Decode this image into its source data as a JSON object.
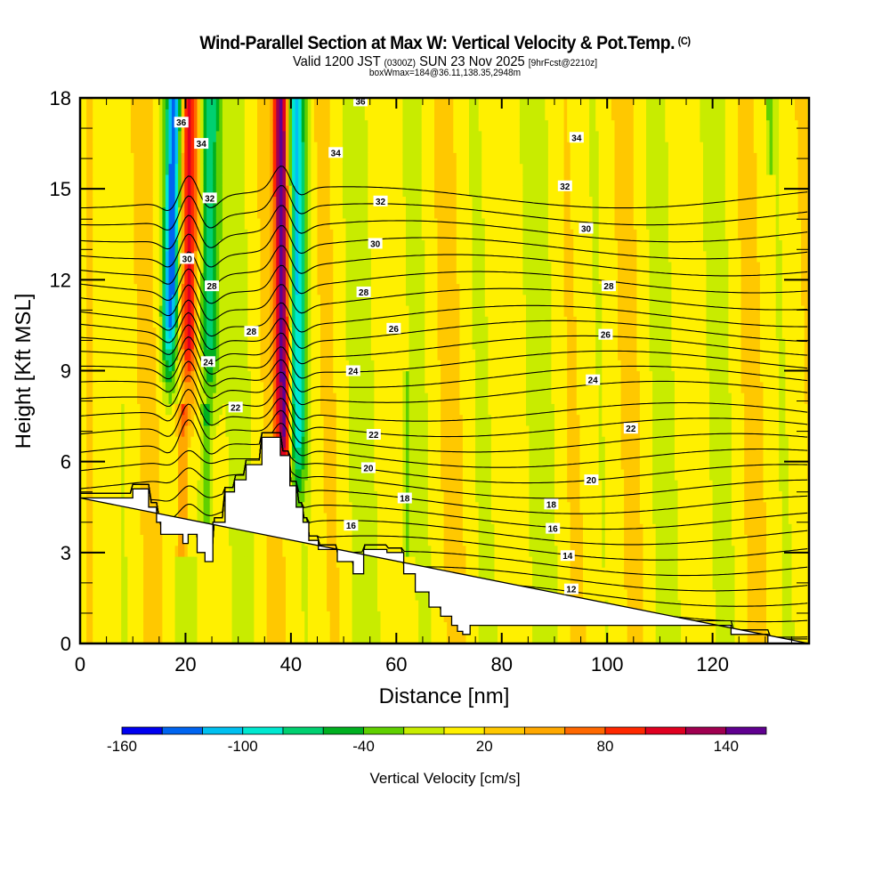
{
  "header": {
    "title": "Wind-Parallel Section at Max W: Vertical Velocity & Pot.Temp.",
    "copyright": "(C)",
    "valid_prefix": "Valid 1200 JST",
    "valid_utc": "(0300Z)",
    "valid_date": "SUN 23 Nov 2025",
    "forecast": "[9hrFcst@2210z]",
    "box_wmax": "boxWmax=184@36.11,138.35,2948m"
  },
  "chart_data": {
    "type": "heatmap",
    "title": "Wind-Parallel Section at Max W: Vertical Velocity & Pot.Temp.",
    "xlabel": "Distance [nm]",
    "ylabel": "Height [Kft MSL]",
    "xlim": [
      0,
      138.3
    ],
    "ylim": [
      0,
      18
    ],
    "x_ticks": [
      0,
      20,
      40,
      60,
      80,
      100,
      120
    ],
    "x_tick_labels": [
      "0",
      "20",
      "40",
      "60",
      "80",
      "100",
      "120"
    ],
    "x_minor_step": 5,
    "y_ticks": [
      0,
      3,
      6,
      9,
      12,
      15,
      18
    ],
    "y_tick_labels": [
      "0",
      "3",
      "6",
      "9",
      "12",
      "15",
      "18"
    ],
    "y_minor_step": 1,
    "colorbar": {
      "title": "Vertical Velocity [cm/s]",
      "placement": "bottom",
      "boundaries": [
        -160,
        -140,
        -120,
        -100,
        -80,
        -60,
        -40,
        -20,
        0,
        20,
        40,
        60,
        80,
        100,
        120,
        140,
        160
      ],
      "tick_values": [
        -160,
        -100,
        -40,
        20,
        80,
        140
      ],
      "tick_labels": [
        "-160",
        "-100",
        "-40",
        "20",
        "80",
        "140"
      ],
      "colors": [
        "#0000f0",
        "#0064f0",
        "#00c0f0",
        "#00e8d0",
        "#00d070",
        "#00b020",
        "#60d000",
        "#c8ec00",
        "#fff000",
        "#ffc800",
        "#ffa800",
        "#ff6800",
        "#ff2800",
        "#e00020",
        "#a00050",
        "#600090"
      ]
    },
    "vertical_velocity_features": [
      {
        "name": "downdraft-core-1",
        "x_center": 17.5,
        "value": -140,
        "y_range": [
          11,
          18
        ]
      },
      {
        "name": "updraft-core-1",
        "x_center": 20.5,
        "value": 110,
        "y_range": [
          10,
          18
        ]
      },
      {
        "name": "downdraft-core-2",
        "x_center": 24.5,
        "value": -90,
        "y_range": [
          10,
          18
        ]
      },
      {
        "name": "updraft-core-2",
        "x_center": 38.5,
        "value": 150,
        "y_range": [
          7,
          18
        ]
      },
      {
        "name": "downdraft-core-3",
        "x_center": 41,
        "value": -110,
        "y_range": [
          7,
          18
        ]
      }
    ],
    "terrain_profile": {
      "x": [
        0,
        10,
        10,
        13,
        13,
        14.5,
        14.5,
        15.3,
        15.3,
        19.5,
        19.5,
        20.5,
        20.5,
        22.2,
        22.2,
        23.7,
        23.7,
        25.2,
        25.2,
        27.5,
        27.5,
        29.3,
        29.3,
        31.5,
        31.5,
        34.5,
        34.5,
        38,
        38,
        39.8,
        39.8,
        41,
        41,
        42.3,
        42.3,
        43.4,
        43.4,
        45.2,
        45.2,
        48.8,
        48.8,
        51.8,
        51.8,
        53.8,
        53.8,
        57.4,
        57.4,
        58.2,
        58.2,
        61.4,
        61.4,
        63.6,
        63.6,
        66.2,
        66.2,
        68.4,
        68.4,
        70.5,
        70.5,
        71.6,
        71.6,
        72.6,
        72.6,
        74,
        74,
        123.5,
        123.5,
        130.5,
        130.5,
        138.3,
        138.3,
        0
      ],
      "y": [
        4.8,
        4.8,
        5.1,
        5.1,
        4.5,
        4.5,
        4.0,
        4.0,
        3.6,
        3.6,
        3.3,
        3.3,
        3.6,
        3.6,
        3.0,
        3.0,
        2.7,
        2.7,
        4.0,
        4.0,
        5.0,
        5.0,
        5.4,
        5.4,
        5.9,
        5.9,
        6.8,
        6.8,
        6.2,
        6.2,
        5.2,
        5.2,
        4.5,
        4.5,
        4.0,
        4.0,
        3.4,
        3.4,
        3.1,
        3.1,
        2.7,
        2.7,
        2.3,
        2.3,
        3.1,
        3.1,
        3.1,
        3.1,
        3.0,
        3.0,
        2.3,
        2.3,
        1.7,
        1.7,
        1.2,
        1.2,
        0.9,
        0.9,
        0.6,
        0.6,
        0.4,
        0.4,
        0.3,
        0.3,
        0.6,
        0.6,
        0.3,
        0.3,
        0,
        0,
        0
      ]
    },
    "potential_temperature_contours": {
      "levels": [
        12,
        14,
        16,
        18,
        20,
        22,
        24,
        26,
        28,
        30,
        32,
        34,
        36
      ],
      "labels": [
        {
          "text": "36",
          "x": 19.2,
          "y": 17.2
        },
        {
          "text": "36",
          "x": 53.2,
          "y": 17.9
        },
        {
          "text": "34",
          "x": 23,
          "y": 16.5
        },
        {
          "text": "34",
          "x": 48.5,
          "y": 16.2
        },
        {
          "text": "34",
          "x": 94.2,
          "y": 16.7
        },
        {
          "text": "32",
          "x": 24.6,
          "y": 14.7
        },
        {
          "text": "32",
          "x": 57,
          "y": 14.6
        },
        {
          "text": "32",
          "x": 92,
          "y": 15.1
        },
        {
          "text": "30",
          "x": 20.3,
          "y": 12.7
        },
        {
          "text": "30",
          "x": 56,
          "y": 13.2
        },
        {
          "text": "30",
          "x": 96,
          "y": 13.7
        },
        {
          "text": "28",
          "x": 25,
          "y": 11.8
        },
        {
          "text": "28",
          "x": 53.8,
          "y": 11.6
        },
        {
          "text": "28",
          "x": 100.3,
          "y": 11.8
        },
        {
          "text": "28",
          "x": 32.5,
          "y": 10.3
        },
        {
          "text": "26",
          "x": 59.5,
          "y": 10.4
        },
        {
          "text": "26",
          "x": 99.7,
          "y": 10.2
        },
        {
          "text": "24",
          "x": 24.3,
          "y": 9.3
        },
        {
          "text": "24",
          "x": 51.8,
          "y": 9.0
        },
        {
          "text": "24",
          "x": 97.3,
          "y": 8.7
        },
        {
          "text": "22",
          "x": 29.5,
          "y": 7.8
        },
        {
          "text": "22",
          "x": 55.7,
          "y": 6.9
        },
        {
          "text": "22",
          "x": 104.5,
          "y": 7.1
        },
        {
          "text": "20",
          "x": 54.7,
          "y": 5.8
        },
        {
          "text": "20",
          "x": 97,
          "y": 5.4
        },
        {
          "text": "18",
          "x": 61.6,
          "y": 4.8
        },
        {
          "text": "18",
          "x": 89.4,
          "y": 4.6
        },
        {
          "text": "16",
          "x": 51.4,
          "y": 3.9
        },
        {
          "text": "16",
          "x": 89.7,
          "y": 3.8
        },
        {
          "text": "14",
          "x": 92.5,
          "y": 2.9
        },
        {
          "text": "12",
          "x": 93.2,
          "y": 1.8
        }
      ]
    }
  }
}
